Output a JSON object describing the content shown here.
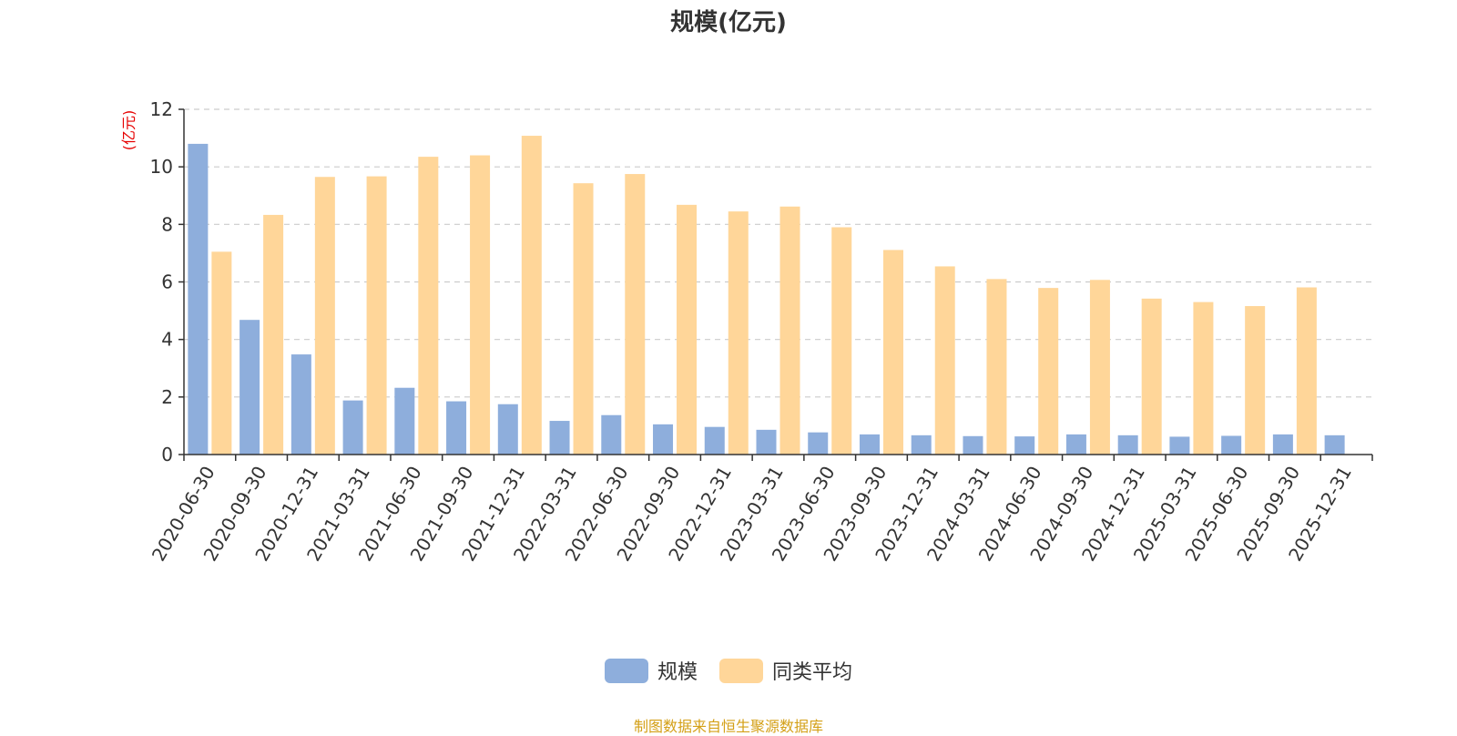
{
  "chart_data": {
    "type": "bar",
    "title": "规模(亿元)",
    "ylabel": "(亿元)",
    "ylim": [
      0,
      12
    ],
    "yticks": [
      0,
      2,
      4,
      6,
      8,
      10,
      12
    ],
    "grid": true,
    "legend_position": "bottom-center",
    "categories": [
      "2020-06-30",
      "2020-09-30",
      "2020-12-31",
      "2021-03-31",
      "2021-06-30",
      "2021-09-30",
      "2021-12-31",
      "2022-03-31",
      "2022-06-30",
      "2022-09-30",
      "2022-12-31",
      "2023-03-31",
      "2023-06-30",
      "2023-09-30",
      "2023-12-31",
      "2024-03-31",
      "2024-06-30",
      "2024-09-30",
      "2024-12-31",
      "2025-03-31",
      "2025-06-30",
      "2025-09-30",
      "2025-12-31"
    ],
    "series": [
      {
        "name": "规模",
        "color": "#8eaedc",
        "values": [
          10.8,
          4.68,
          3.48,
          1.88,
          2.32,
          1.85,
          1.75,
          1.17,
          1.37,
          1.05,
          0.96,
          0.86,
          0.77,
          0.7,
          0.67,
          0.64,
          0.63,
          0.7,
          0.67,
          0.62,
          0.65,
          0.7,
          0.67
        ]
      },
      {
        "name": "同类平均",
        "color": "#ffd699",
        "values": [
          7.05,
          8.33,
          9.65,
          9.67,
          10.35,
          10.4,
          11.08,
          9.43,
          9.75,
          8.68,
          8.45,
          8.62,
          7.9,
          7.11,
          6.54,
          6.1,
          5.79,
          6.07,
          5.42,
          5.3,
          5.16,
          5.81,
          null
        ]
      }
    ]
  },
  "source_text": "制图数据来自恒生聚源数据库"
}
